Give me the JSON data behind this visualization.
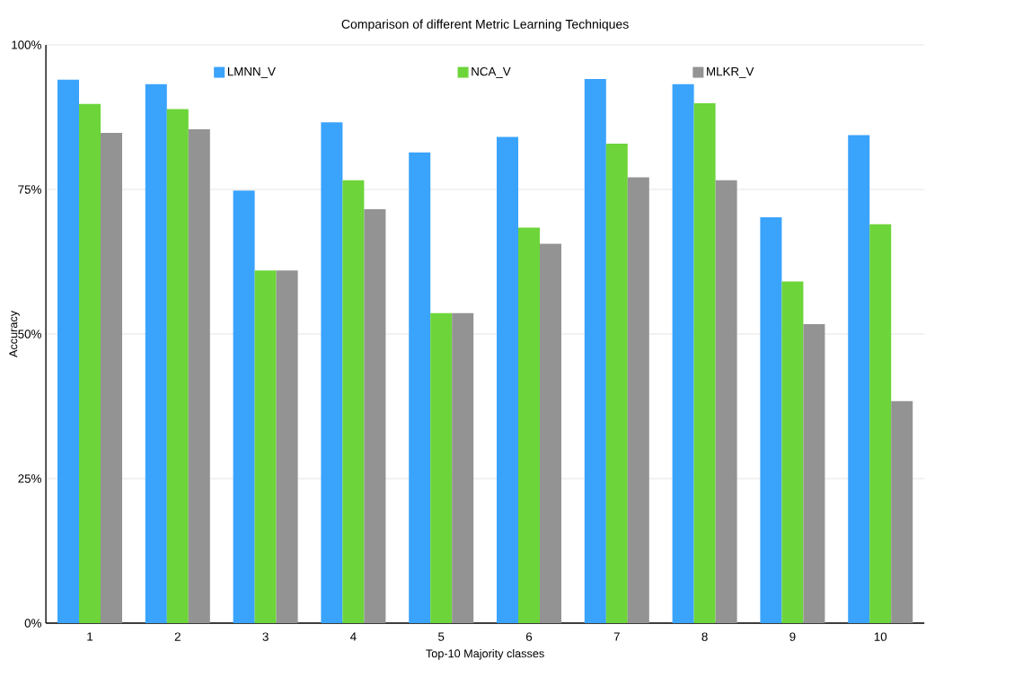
{
  "chart_data": {
    "type": "bar",
    "title": "Comparison of different Metric Learning Techniques",
    "xlabel": "Top-10 Majority classes",
    "ylabel": "Accuracy",
    "categories": [
      "1",
      "2",
      "3",
      "4",
      "5",
      "6",
      "7",
      "8",
      "9",
      "10"
    ],
    "series": [
      {
        "name": "LMNN_V",
        "color": "#3aa3fc",
        "values": [
          94.0,
          93.2,
          74.8,
          86.6,
          81.4,
          84.1,
          94.1,
          93.2,
          70.2,
          84.4
        ]
      },
      {
        "name": "NCA_V",
        "color": "#6dd43a",
        "values": [
          89.8,
          88.9,
          61.0,
          76.6,
          53.6,
          68.4,
          82.9,
          89.9,
          59.1,
          69.0
        ]
      },
      {
        "name": "MLKR_V",
        "color": "#939393",
        "values": [
          84.8,
          85.4,
          61.0,
          71.6,
          53.6,
          65.6,
          77.1,
          76.6,
          51.7,
          38.4
        ]
      }
    ],
    "ylim": [
      0,
      100
    ],
    "yticks": [
      {
        "value": 0,
        "label": "0%"
      },
      {
        "value": 25,
        "label": "25%"
      },
      {
        "value": 50,
        "label": "50%"
      },
      {
        "value": 75,
        "label": "75%"
      },
      {
        "value": 100,
        "label": "100%"
      }
    ],
    "grid": "y",
    "legend": "top"
  }
}
